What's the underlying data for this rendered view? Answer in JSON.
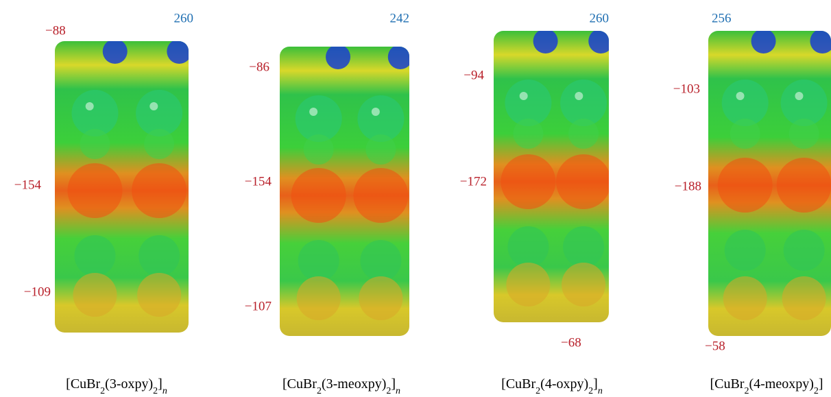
{
  "panels": [
    {
      "labels": [
        "260",
        "−88",
        "−154",
        "−109"
      ],
      "caption": [
        "[CuBr",
        "2",
        "(3-oxpy)",
        "2",
        "]",
        "n"
      ]
    },
    {
      "labels": [
        "242",
        "−86",
        "−154",
        "−107"
      ],
      "caption": [
        "[CuBr",
        "2",
        "(3-meoxpy)",
        "2",
        "]",
        "n"
      ]
    },
    {
      "labels": [
        "260",
        "−94",
        "−172",
        "−68"
      ],
      "caption": [
        "[CuBr",
        "2",
        "(4-oxpy)",
        "2",
        "]",
        "n"
      ]
    },
    {
      "labels": [
        "256",
        "−103",
        "−188",
        "−58"
      ],
      "caption": [
        "[CuBr",
        "2",
        "(4-meoxpy)",
        "2",
        "]"
      ]
    }
  ]
}
